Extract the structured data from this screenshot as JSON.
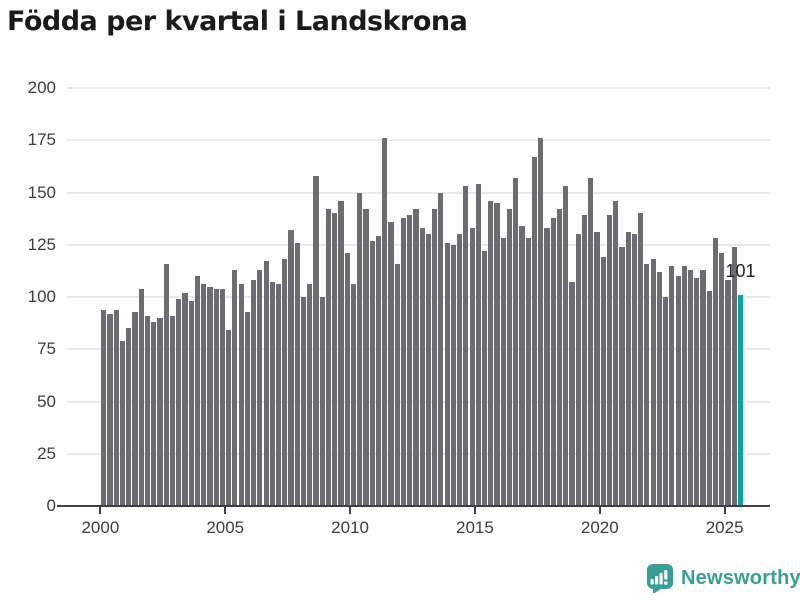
{
  "title": "Födda per kvartal i Landskrona",
  "logo": {
    "text": "Newsworthy"
  },
  "colors": {
    "bar": "#6c6c71",
    "highlight": "#0ba3a0",
    "grid": "#e9e9e9",
    "axis": "#3e3e43",
    "tick_text": "#3d3d3d",
    "title_text": "#1b1b1b",
    "logo_teal": "#3a9e96"
  },
  "chart_data": {
    "type": "bar",
    "title": "Födda per kvartal i Landskrona",
    "x_start": "2000Q1",
    "x_freq": "quarterly",
    "values": [
      94,
      92,
      94,
      79,
      85,
      93,
      104,
      91,
      88,
      90,
      116,
      91,
      99,
      102,
      98,
      110,
      106,
      105,
      104,
      104,
      84,
      113,
      106,
      93,
      108,
      113,
      117,
      107,
      106,
      118,
      132,
      126,
      100,
      106,
      158,
      100,
      142,
      140,
      146,
      121,
      106,
      150,
      142,
      127,
      129,
      176,
      136,
      116,
      138,
      139,
      142,
      133,
      130,
      142,
      150,
      126,
      125,
      130,
      153,
      133,
      154,
      122,
      146,
      145,
      128,
      142,
      157,
      134,
      128,
      167,
      176,
      133,
      138,
      142,
      153,
      107,
      130,
      139,
      157,
      131,
      119,
      139,
      146,
      124,
      131,
      130,
      140,
      116,
      118,
      112,
      100,
      115,
      110,
      115,
      113,
      109,
      113,
      103,
      128,
      121,
      108,
      124,
      101
    ],
    "highlight_index": 102,
    "highlight_label": "101",
    "ylim": [
      0,
      200
    ],
    "yticks": [
      0,
      25,
      50,
      75,
      100,
      125,
      150,
      175,
      200
    ],
    "xticks": [
      2000,
      2005,
      2010,
      2015,
      2020,
      2025
    ],
    "grid": "horizontal",
    "legend": "none",
    "xlabel": "",
    "ylabel": ""
  }
}
